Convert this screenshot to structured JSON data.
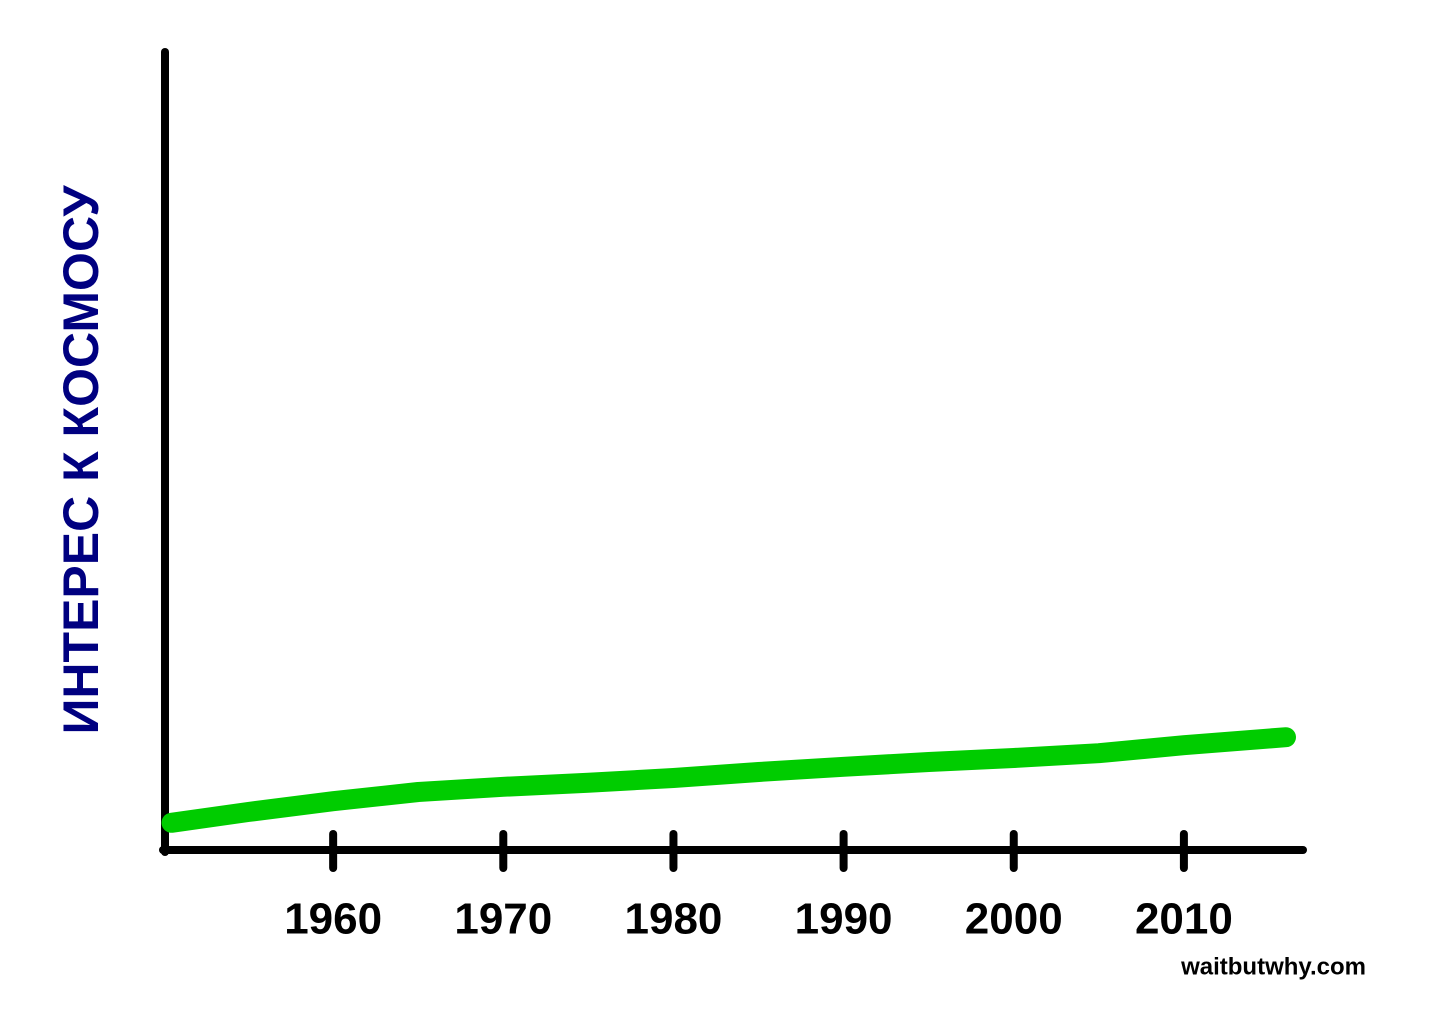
{
  "chart_data": {
    "type": "line",
    "y_label": "ИНТЕРЕС К КОСМОСУ",
    "source": "waitbutwhy.com",
    "x": [
      1950.5,
      1955,
      1960,
      1965,
      1970,
      1975,
      1980,
      1985,
      1990,
      1995,
      2000,
      2005,
      2010,
      2016
    ],
    "series": [
      {
        "color": "#00cc00",
        "values": [
          3.4,
          4.75,
          6.1,
          7.25,
          7.9,
          8.4,
          9,
          9.75,
          10.4,
          11,
          11.5,
          12.1,
          13.1,
          14.1
        ]
      }
    ],
    "xlim": [
      1950,
      2017
    ],
    "ylim": [
      0,
      100
    ],
    "xticks": [
      1960,
      1970,
      1980,
      1990,
      2000,
      2010
    ]
  }
}
